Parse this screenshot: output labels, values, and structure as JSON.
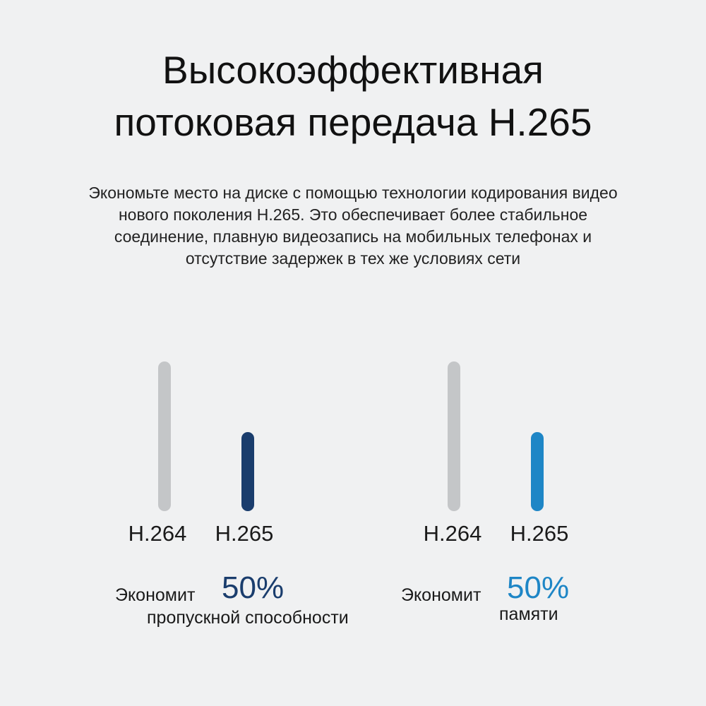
{
  "header": {
    "title_line1": "Высокоэффективная",
    "title_line2": "потоковая передача H.265"
  },
  "description": {
    "lines": [
      "Экономьте место на диске с помощью технологии кодирования видео",
      "нового поколения H.265. Это обеспечивает более стабильное",
      "соединение, плавную видеозапись на мобильных телефонах и",
      "отсутствие задержек в тех же условиях сети"
    ]
  },
  "chart_data": [
    {
      "type": "bar",
      "categories": [
        "H.264",
        "H.265"
      ],
      "values": [
        100,
        50
      ],
      "colors": [
        "#c4c6c8",
        "#1a3d6d"
      ],
      "ylim": [
        0,
        100
      ],
      "caption_prefix": "Экономит",
      "caption_value": "50%",
      "caption_suffix": "пропускной способности",
      "accent": "#1a3d6d"
    },
    {
      "type": "bar",
      "categories": [
        "H.264",
        "H.265"
      ],
      "values": [
        100,
        50
      ],
      "colors": [
        "#c4c6c8",
        "#1e86c6"
      ],
      "ylim": [
        0,
        100
      ],
      "caption_prefix": "Экономит",
      "caption_value": "50%",
      "caption_suffix": "памяти",
      "accent": "#1e86c6"
    }
  ]
}
